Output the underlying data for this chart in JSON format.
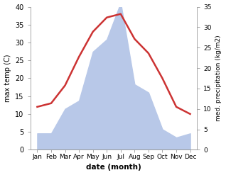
{
  "months": [
    "Jan",
    "Feb",
    "Mar",
    "Apr",
    "May",
    "Jun",
    "Jul",
    "Aug",
    "Sep",
    "Oct",
    "Nov",
    "Dec"
  ],
  "temperature": [
    12,
    13,
    18,
    26,
    33,
    37,
    38,
    31,
    27,
    20,
    12,
    10
  ],
  "precipitation": [
    4,
    4,
    10,
    12,
    24,
    27,
    36,
    16,
    14,
    5,
    3,
    4
  ],
  "temp_color": "#cc3333",
  "precip_fill_color": "#b8c8e8",
  "ylabel_left": "max temp (C)",
  "ylabel_right": "med. precipitation (kg/m2)",
  "xlabel": "date (month)",
  "ylim_left": [
    0,
    40
  ],
  "ylim_right": [
    0,
    35
  ],
  "bg_color": "#ffffff",
  "line_width": 1.8
}
